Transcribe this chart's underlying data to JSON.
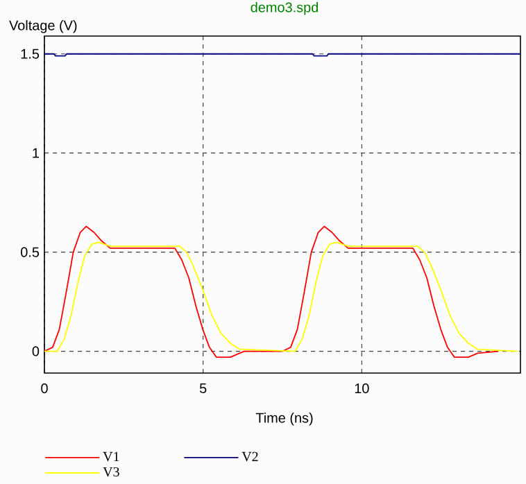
{
  "chart_data": {
    "type": "line",
    "title": "demo3.spd",
    "xlabel": "Time (ns)",
    "ylabel": "Voltage (V)",
    "xlim": [
      0,
      15
    ],
    "ylim": [
      -0.11,
      1.59
    ],
    "xticks": [
      0,
      5,
      10
    ],
    "yticks": [
      0,
      0.5,
      1,
      1.5
    ],
    "grid": true,
    "legend": "bottom",
    "line_style": "solid",
    "series": [
      {
        "name": "V1",
        "color": "#ff0000",
        "x": [
          0,
          0.26,
          0.47,
          0.69,
          0.91,
          1.13,
          1.32,
          1.56,
          1.78,
          2.07,
          4.11,
          4.33,
          4.55,
          4.77,
          4.99,
          5.2,
          5.42,
          5.86,
          6.15,
          6.3,
          7.5,
          7.76,
          7.97,
          8.19,
          8.41,
          8.63,
          8.82,
          9.06,
          9.28,
          9.57,
          11.61,
          11.83,
          12.05,
          12.27,
          12.49,
          12.7,
          12.92,
          13.36,
          13.65,
          14.3
        ],
        "values": [
          0,
          0.02,
          0.11,
          0.3,
          0.5,
          0.6,
          0.63,
          0.6,
          0.56,
          0.52,
          0.52,
          0.46,
          0.37,
          0.23,
          0.11,
          0.02,
          -0.03,
          -0.03,
          -0.01,
          0,
          0,
          0.02,
          0.11,
          0.3,
          0.5,
          0.6,
          0.63,
          0.6,
          0.56,
          0.52,
          0.52,
          0.46,
          0.37,
          0.23,
          0.11,
          0.02,
          -0.03,
          -0.03,
          -0.01,
          0
        ]
      },
      {
        "name": "V2",
        "color": "#000080",
        "x": [
          0,
          0.3,
          0.35,
          0.65,
          0.7,
          8.45,
          8.5,
          8.9,
          8.95,
          15
        ],
        "values": [
          1.5,
          1.5,
          1.49,
          1.49,
          1.5,
          1.5,
          1.49,
          1.49,
          1.5,
          1.5
        ]
      },
      {
        "name": "V3",
        "color": "#ffff00",
        "x": [
          0,
          0.4,
          0.62,
          0.84,
          1.06,
          1.27,
          1.49,
          1.71,
          2.07,
          4.26,
          4.48,
          4.69,
          4.99,
          5.28,
          5.57,
          5.86,
          6.15,
          7.9,
          8.12,
          8.34,
          8.56,
          8.77,
          8.99,
          9.21,
          9.57,
          11.76,
          11.98,
          12.19,
          12.49,
          12.78,
          13.07,
          13.36,
          13.65,
          14.9
        ],
        "values": [
          0,
          0,
          0.06,
          0.18,
          0.35,
          0.48,
          0.54,
          0.55,
          0.53,
          0.53,
          0.5,
          0.43,
          0.31,
          0.18,
          0.09,
          0.04,
          0.01,
          0,
          0.06,
          0.18,
          0.35,
          0.48,
          0.54,
          0.55,
          0.53,
          0.53,
          0.5,
          0.43,
          0.31,
          0.18,
          0.09,
          0.04,
          0.01,
          0
        ]
      }
    ]
  }
}
